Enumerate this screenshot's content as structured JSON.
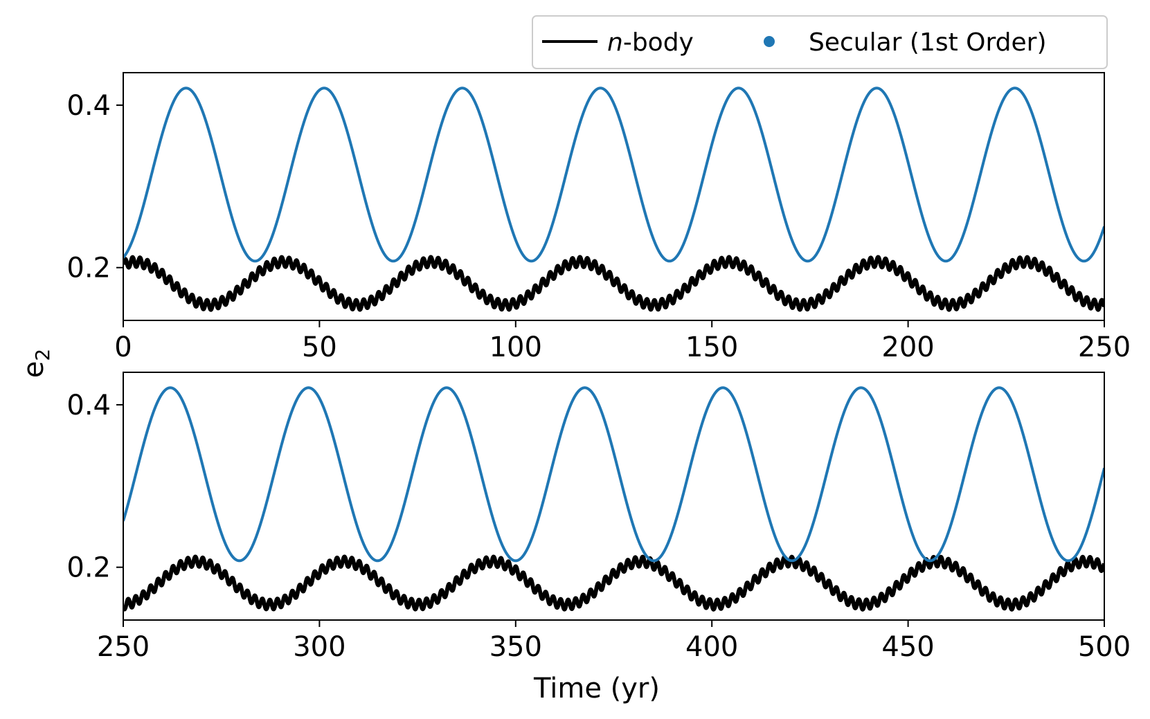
{
  "chart_data": [
    {
      "type": "line",
      "panel": "top",
      "xlim": [
        0,
        250
      ],
      "ylim": [
        0.135,
        0.44
      ],
      "xticks": [
        0,
        50,
        100,
        150,
        200,
        250
      ],
      "xtick_labels": [
        "0",
        "50",
        "100",
        "150",
        "200",
        "250"
      ],
      "yticks": [
        0.2,
        0.4
      ],
      "ytick_labels": [
        "0.2",
        "0.4"
      ],
      "grid": false,
      "series": [
        {
          "name": "Secular (1st Order)",
          "color": "#1f77b4",
          "model": "sinusoid",
          "min": 0.208,
          "max": 0.421,
          "period_yr": 35.2,
          "first_peak_yr": 16,
          "sample_points": [
            [
              0,
              0.213
            ],
            [
              16,
              0.421
            ],
            [
              33.5,
              0.208
            ],
            [
              51,
              0.421
            ],
            [
              69,
              0.208
            ],
            [
              86,
              0.421
            ],
            [
              104,
              0.208
            ],
            [
              121,
              0.421
            ],
            [
              139,
              0.208
            ],
            [
              156,
              0.421
            ],
            [
              174,
              0.208
            ],
            [
              191,
              0.421
            ],
            [
              209,
              0.208
            ],
            [
              226,
              0.421
            ],
            [
              244,
              0.208
            ],
            [
              250,
              0.255
            ]
          ]
        },
        {
          "name": "n-body",
          "color": "#000000",
          "model": "sinusoid-with-ripple",
          "min": 0.148,
          "max": 0.213,
          "period_yr": 37.8,
          "first_peak_yr": 3,
          "ripple_amplitude": 0.006,
          "ripple_period_yr": 1.9,
          "sample_points": [
            [
              0,
              0.21
            ],
            [
              3,
              0.213
            ],
            [
              21,
              0.148
            ],
            [
              41,
              0.213
            ],
            [
              59,
              0.148
            ],
            [
              78,
              0.213
            ],
            [
              98,
              0.148
            ],
            [
              116,
              0.213
            ],
            [
              135,
              0.148
            ],
            [
              155,
              0.213
            ],
            [
              173,
              0.148
            ],
            [
              192,
              0.213
            ],
            [
              211,
              0.148
            ],
            [
              230,
              0.213
            ],
            [
              250,
              0.148
            ]
          ]
        }
      ]
    },
    {
      "type": "line",
      "panel": "bottom",
      "xlim": [
        250,
        500
      ],
      "ylim": [
        0.135,
        0.44
      ],
      "xticks": [
        250,
        300,
        350,
        400,
        450,
        500
      ],
      "xtick_labels": [
        "250",
        "300",
        "350",
        "400",
        "450",
        "500"
      ],
      "yticks": [
        0.2,
        0.4
      ],
      "ytick_labels": [
        "0.2",
        "0.4"
      ],
      "grid": false,
      "series": [
        {
          "name": "Secular (1st Order)",
          "color": "#1f77b4",
          "model": "sinusoid",
          "min": 0.208,
          "max": 0.421,
          "period_yr": 35.2,
          "first_peak_yr": 262,
          "sample_points": [
            [
              250,
              0.255
            ],
            [
              262,
              0.421
            ],
            [
              279,
              0.208
            ],
            [
              297,
              0.421
            ],
            [
              315,
              0.208
            ],
            [
              332,
              0.421
            ],
            [
              350,
              0.208
            ],
            [
              367,
              0.421
            ],
            [
              385,
              0.208
            ],
            [
              402,
              0.421
            ],
            [
              420,
              0.208
            ],
            [
              437,
              0.421
            ],
            [
              455,
              0.208
            ],
            [
              472,
              0.421
            ],
            [
              490,
              0.208
            ],
            [
              500,
              0.32
            ]
          ]
        },
        {
          "name": "n-body",
          "color": "#000000",
          "model": "sinusoid-with-ripple",
          "min": 0.148,
          "max": 0.213,
          "period_yr": 37.8,
          "first_peak_yr": 268.5,
          "ripple_amplitude": 0.006,
          "ripple_period_yr": 1.9,
          "sample_points": [
            [
              250,
              0.148
            ],
            [
              268,
              0.213
            ],
            [
              287,
              0.148
            ],
            [
              306,
              0.213
            ],
            [
              325,
              0.148
            ],
            [
              344,
              0.213
            ],
            [
              363,
              0.148
            ],
            [
              382,
              0.213
            ],
            [
              401,
              0.148
            ],
            [
              420,
              0.213
            ],
            [
              438,
              0.148
            ],
            [
              457,
              0.213
            ],
            [
              476,
              0.148
            ],
            [
              495,
              0.213
            ],
            [
              500,
              0.211
            ]
          ]
        }
      ]
    }
  ],
  "axes": {
    "ylabel_base": "e",
    "ylabel_sub": "2",
    "xlabel": "Time (yr)"
  },
  "legend": {
    "placement": "top-right, above the top panel",
    "entries": [
      {
        "label_italic": "n",
        "label_rest": "-body",
        "marker": "line",
        "color": "#000000"
      },
      {
        "label": "Secular (1st Order)",
        "marker": "dot",
        "color": "#1f77b4"
      }
    ]
  }
}
